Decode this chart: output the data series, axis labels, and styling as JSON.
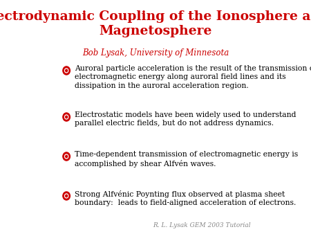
{
  "title_line1": "Electrodynamic Coupling of the Ionosphere and",
  "title_line2": "Magnetosphere",
  "subtitle": "Bob Lysak, University of Minnesota",
  "title_color": "#cc0000",
  "subtitle_color": "#cc0000",
  "background_color": "#ffffff",
  "bullet_color": "#cc0000",
  "text_color": "#000000",
  "footer": "R. L. Lysak GEM 2003 Tutorial",
  "footer_color": "#888888",
  "bullets": [
    "Auroral particle acceleration is the result of the transmission of\nelectromagnetic energy along auroral field lines and its\ndissipation in the auroral acceleration region.",
    "Electrostatic models have been widely used to understand\nparallel electric fields, but do not address dynamics.",
    "Time-dependent transmission of electromagnetic energy is\naccomplished by shear Alfvén waves.",
    "Strong Alfvénic Poynting flux observed at plasma sheet\nboundary:  leads to field-aligned acceleration of electrons."
  ]
}
